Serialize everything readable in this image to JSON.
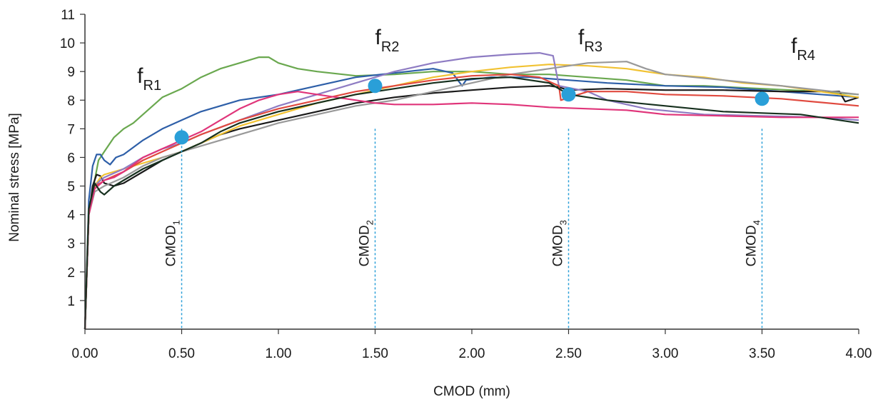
{
  "chart_data": {
    "type": "line",
    "xlabel": "CMOD (mm)",
    "ylabel": "Nominal stress [MPa]",
    "xlim": [
      0,
      4
    ],
    "ylim": [
      0,
      11
    ],
    "x_ticks": [
      "0.00",
      "0.50",
      "1.00",
      "1.50",
      "2.00",
      "2.50",
      "3.00",
      "3.50",
      "4.00"
    ],
    "y_ticks": [
      "1",
      "2",
      "3",
      "4",
      "5",
      "6",
      "7",
      "8",
      "9",
      "10",
      "11"
    ],
    "grid": false,
    "cmod_markers": [
      {
        "base": "CMOD",
        "sub": "1",
        "x": 0.5
      },
      {
        "base": "CMOD",
        "sub": "2",
        "x": 1.5
      },
      {
        "base": "CMOD",
        "sub": "3",
        "x": 2.5
      },
      {
        "base": "CMOD",
        "sub": "4",
        "x": 3.5
      }
    ],
    "residual_points": [
      {
        "base": "f",
        "sub": "R1",
        "x": 0.5,
        "y": 6.7
      },
      {
        "base": "f",
        "sub": "R2",
        "x": 1.5,
        "y": 8.5
      },
      {
        "base": "f",
        "sub": "R3",
        "x": 2.5,
        "y": 8.2
      },
      {
        "base": "f",
        "sub": "R4",
        "x": 3.5,
        "y": 8.05
      }
    ],
    "marker_color": "#2a9fd8",
    "series": [
      {
        "color": "#6aa84f",
        "points": [
          [
            0,
            0
          ],
          [
            0.02,
            4.0
          ],
          [
            0.05,
            5.2
          ],
          [
            0.07,
            5.9
          ],
          [
            0.1,
            6.2
          ],
          [
            0.15,
            6.7
          ],
          [
            0.2,
            7.0
          ],
          [
            0.25,
            7.2
          ],
          [
            0.3,
            7.5
          ],
          [
            0.4,
            8.1
          ],
          [
            0.5,
            8.4
          ],
          [
            0.6,
            8.8
          ],
          [
            0.7,
            9.1
          ],
          [
            0.8,
            9.3
          ],
          [
            0.9,
            9.5
          ],
          [
            0.95,
            9.5
          ],
          [
            1.0,
            9.3
          ],
          [
            1.1,
            9.1
          ],
          [
            1.2,
            9.0
          ],
          [
            1.4,
            8.85
          ],
          [
            1.6,
            8.9
          ],
          [
            1.8,
            9.0
          ],
          [
            2.0,
            9.0
          ],
          [
            2.2,
            8.9
          ],
          [
            2.4,
            8.9
          ],
          [
            2.6,
            8.8
          ],
          [
            2.8,
            8.7
          ],
          [
            3.0,
            8.5
          ],
          [
            3.2,
            8.5
          ],
          [
            3.5,
            8.4
          ],
          [
            3.8,
            8.3
          ],
          [
            4.0,
            8.2
          ]
        ]
      },
      {
        "color": "#2e5fa8",
        "points": [
          [
            0,
            0
          ],
          [
            0.02,
            4.5
          ],
          [
            0.04,
            5.7
          ],
          [
            0.06,
            6.1
          ],
          [
            0.08,
            6.1
          ],
          [
            0.1,
            5.9
          ],
          [
            0.13,
            5.75
          ],
          [
            0.16,
            6.0
          ],
          [
            0.2,
            6.1
          ],
          [
            0.3,
            6.6
          ],
          [
            0.4,
            7.0
          ],
          [
            0.5,
            7.3
          ],
          [
            0.6,
            7.6
          ],
          [
            0.7,
            7.8
          ],
          [
            0.8,
            8.0
          ],
          [
            1.0,
            8.2
          ],
          [
            1.2,
            8.5
          ],
          [
            1.4,
            8.8
          ],
          [
            1.6,
            8.95
          ],
          [
            1.8,
            9.1
          ],
          [
            1.9,
            8.95
          ],
          [
            1.95,
            8.5
          ],
          [
            1.97,
            8.7
          ],
          [
            2.1,
            8.8
          ],
          [
            2.3,
            8.8
          ],
          [
            2.5,
            8.7
          ],
          [
            2.7,
            8.6
          ],
          [
            3.0,
            8.5
          ],
          [
            3.3,
            8.45
          ],
          [
            3.6,
            8.3
          ],
          [
            4.0,
            8.1
          ]
        ]
      },
      {
        "color": "#1a1a1a",
        "points": [
          [
            0,
            0
          ],
          [
            0.02,
            4.0
          ],
          [
            0.04,
            5.0
          ],
          [
            0.06,
            5.4
          ],
          [
            0.08,
            5.35
          ],
          [
            0.1,
            5.1
          ],
          [
            0.15,
            5.0
          ],
          [
            0.2,
            5.1
          ],
          [
            0.3,
            5.5
          ],
          [
            0.4,
            5.9
          ],
          [
            0.5,
            6.2
          ],
          [
            0.6,
            6.5
          ],
          [
            0.7,
            6.8
          ],
          [
            0.8,
            7.0
          ],
          [
            0.9,
            7.15
          ],
          [
            1.0,
            7.3
          ],
          [
            1.2,
            7.6
          ],
          [
            1.4,
            7.9
          ],
          [
            1.6,
            8.1
          ],
          [
            1.8,
            8.25
          ],
          [
            2.0,
            8.35
          ],
          [
            2.2,
            8.45
          ],
          [
            2.4,
            8.5
          ],
          [
            2.45,
            8.45
          ],
          [
            2.5,
            8.35
          ],
          [
            2.7,
            8.4
          ],
          [
            3.0,
            8.35
          ],
          [
            3.3,
            8.35
          ],
          [
            3.6,
            8.3
          ],
          [
            3.9,
            8.3
          ],
          [
            3.93,
            7.95
          ],
          [
            4.0,
            8.1
          ]
        ]
      },
      {
        "color": "#f1c232",
        "points": [
          [
            0,
            0
          ],
          [
            0.02,
            4.2
          ],
          [
            0.05,
            5.0
          ],
          [
            0.08,
            5.3
          ],
          [
            0.1,
            5.4
          ],
          [
            0.15,
            5.5
          ],
          [
            0.2,
            5.6
          ],
          [
            0.3,
            5.8
          ],
          [
            0.4,
            6.0
          ],
          [
            0.5,
            6.2
          ],
          [
            0.6,
            6.5
          ],
          [
            0.7,
            6.8
          ],
          [
            0.8,
            7.1
          ],
          [
            1.0,
            7.5
          ],
          [
            1.2,
            7.9
          ],
          [
            1.4,
            8.2
          ],
          [
            1.6,
            8.5
          ],
          [
            1.8,
            8.8
          ],
          [
            2.0,
            9.0
          ],
          [
            2.2,
            9.15
          ],
          [
            2.4,
            9.25
          ],
          [
            2.6,
            9.2
          ],
          [
            2.8,
            9.1
          ],
          [
            3.0,
            8.9
          ],
          [
            3.2,
            8.8
          ],
          [
            3.4,
            8.6
          ],
          [
            3.6,
            8.5
          ],
          [
            3.8,
            8.3
          ],
          [
            4.0,
            8.1
          ]
        ]
      },
      {
        "color": "#8e7cc3",
        "points": [
          [
            0,
            0
          ],
          [
            0.02,
            4.0
          ],
          [
            0.05,
            5.0
          ],
          [
            0.08,
            5.2
          ],
          [
            0.1,
            5.3
          ],
          [
            0.2,
            5.6
          ],
          [
            0.3,
            6.0
          ],
          [
            0.4,
            6.3
          ],
          [
            0.5,
            6.5
          ],
          [
            0.6,
            6.8
          ],
          [
            0.8,
            7.3
          ],
          [
            1.0,
            7.8
          ],
          [
            1.2,
            8.2
          ],
          [
            1.4,
            8.6
          ],
          [
            1.6,
            9.0
          ],
          [
            1.8,
            9.3
          ],
          [
            2.0,
            9.5
          ],
          [
            2.2,
            9.6
          ],
          [
            2.35,
            9.65
          ],
          [
            2.42,
            9.55
          ],
          [
            2.45,
            8.5
          ],
          [
            2.6,
            8.3
          ],
          [
            2.7,
            8.0
          ],
          [
            2.9,
            7.7
          ],
          [
            3.2,
            7.5
          ],
          [
            3.5,
            7.45
          ],
          [
            3.8,
            7.4
          ],
          [
            4.0,
            7.3
          ]
        ]
      },
      {
        "color": "#e0e0e0",
        "stroke": "#999999",
        "points": [
          [
            0,
            0
          ],
          [
            0.02,
            4.0
          ],
          [
            0.05,
            4.8
          ],
          [
            0.1,
            5.0
          ],
          [
            0.2,
            5.3
          ],
          [
            0.3,
            5.7
          ],
          [
            0.4,
            6.0
          ],
          [
            0.5,
            6.2
          ],
          [
            0.6,
            6.4
          ],
          [
            0.7,
            6.6
          ],
          [
            0.8,
            6.8
          ],
          [
            0.9,
            7.0
          ],
          [
            1.0,
            7.2
          ],
          [
            1.2,
            7.5
          ],
          [
            1.4,
            7.8
          ],
          [
            1.6,
            8.0
          ],
          [
            1.8,
            8.3
          ],
          [
            2.0,
            8.6
          ],
          [
            2.2,
            8.9
          ],
          [
            2.4,
            9.1
          ],
          [
            2.6,
            9.3
          ],
          [
            2.8,
            9.35
          ],
          [
            2.9,
            9.1
          ],
          [
            3.0,
            8.9
          ],
          [
            3.3,
            8.7
          ],
          [
            3.6,
            8.5
          ],
          [
            4.0,
            8.2
          ]
        ]
      },
      {
        "color": "#e04a3f",
        "points": [
          [
            0,
            0
          ],
          [
            0.02,
            4.0
          ],
          [
            0.05,
            5.0
          ],
          [
            0.08,
            5.1
          ],
          [
            0.1,
            5.2
          ],
          [
            0.2,
            5.5
          ],
          [
            0.3,
            5.9
          ],
          [
            0.4,
            6.2
          ],
          [
            0.5,
            6.5
          ],
          [
            0.6,
            6.8
          ],
          [
            0.8,
            7.3
          ],
          [
            1.0,
            7.7
          ],
          [
            1.2,
            8.0
          ],
          [
            1.4,
            8.3
          ],
          [
            1.6,
            8.5
          ],
          [
            1.8,
            8.7
          ],
          [
            2.0,
            8.85
          ],
          [
            2.2,
            8.9
          ],
          [
            2.35,
            8.8
          ],
          [
            2.45,
            8.5
          ],
          [
            2.46,
            8.0
          ],
          [
            2.6,
            8.3
          ],
          [
            2.8,
            8.3
          ],
          [
            3.0,
            8.2
          ],
          [
            3.3,
            8.15
          ],
          [
            3.6,
            8.05
          ],
          [
            4.0,
            7.8
          ]
        ]
      },
      {
        "color": "#e0357a",
        "points": [
          [
            0,
            0
          ],
          [
            0.02,
            4.0
          ],
          [
            0.05,
            4.9
          ],
          [
            0.1,
            5.2
          ],
          [
            0.15,
            5.3
          ],
          [
            0.2,
            5.5
          ],
          [
            0.3,
            6.0
          ],
          [
            0.4,
            6.3
          ],
          [
            0.5,
            6.6
          ],
          [
            0.6,
            6.9
          ],
          [
            0.7,
            7.3
          ],
          [
            0.8,
            7.7
          ],
          [
            0.9,
            8.0
          ],
          [
            1.0,
            8.2
          ],
          [
            1.1,
            8.3
          ],
          [
            1.2,
            8.2
          ],
          [
            1.3,
            8.1
          ],
          [
            1.4,
            8.0
          ],
          [
            1.5,
            7.9
          ],
          [
            1.6,
            7.85
          ],
          [
            1.8,
            7.85
          ],
          [
            2.0,
            7.9
          ],
          [
            2.2,
            7.85
          ],
          [
            2.4,
            7.75
          ],
          [
            2.6,
            7.7
          ],
          [
            2.8,
            7.65
          ],
          [
            3.0,
            7.5
          ],
          [
            3.3,
            7.45
          ],
          [
            3.6,
            7.4
          ],
          [
            4.0,
            7.4
          ]
        ]
      },
      {
        "color": "#17311f",
        "points": [
          [
            0,
            0
          ],
          [
            0.02,
            4.2
          ],
          [
            0.05,
            5.1
          ],
          [
            0.08,
            4.8
          ],
          [
            0.1,
            4.7
          ],
          [
            0.15,
            5.0
          ],
          [
            0.2,
            5.2
          ],
          [
            0.3,
            5.6
          ],
          [
            0.4,
            5.9
          ],
          [
            0.5,
            6.2
          ],
          [
            0.6,
            6.5
          ],
          [
            0.7,
            6.9
          ],
          [
            0.8,
            7.2
          ],
          [
            1.0,
            7.6
          ],
          [
            1.2,
            7.9
          ],
          [
            1.4,
            8.2
          ],
          [
            1.6,
            8.4
          ],
          [
            1.8,
            8.6
          ],
          [
            2.0,
            8.75
          ],
          [
            2.2,
            8.8
          ],
          [
            2.4,
            8.6
          ],
          [
            2.5,
            8.2
          ],
          [
            2.7,
            8.0
          ],
          [
            3.0,
            7.8
          ],
          [
            3.3,
            7.6
          ],
          [
            3.5,
            7.55
          ],
          [
            3.7,
            7.5
          ],
          [
            4.0,
            7.2
          ]
        ]
      }
    ]
  }
}
